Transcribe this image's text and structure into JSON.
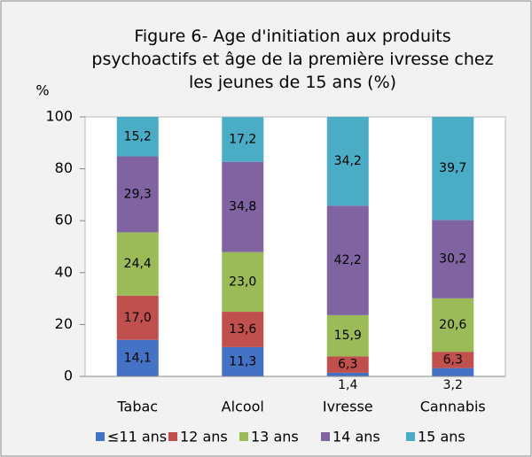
{
  "chart_data": {
    "type": "stacked_bar",
    "title": "Figure 6- Age d'initiation aux produits psychoactifs et âge de la première ivresse chez les jeunes de 15 ans (%)",
    "y_label": "%",
    "categories": [
      "Tabac",
      "Alcool",
      "Ivresse",
      "Cannabis"
    ],
    "series": [
      {
        "name": "≤11 ans",
        "color": "#4472c4",
        "values": [
          14.1,
          11.3,
          1.4,
          3.2
        ],
        "value_labels": [
          "14,1",
          "11,3",
          "1,4",
          "3,2"
        ]
      },
      {
        "name": "12 ans",
        "color": "#c0504d",
        "values": [
          17.0,
          13.6,
          6.3,
          6.3
        ],
        "value_labels": [
          "17,0",
          "13,6",
          "6,3",
          "6,3"
        ]
      },
      {
        "name": "13 ans",
        "color": "#9bbb59",
        "values": [
          24.4,
          23.0,
          15.9,
          20.6
        ],
        "value_labels": [
          "24,4",
          "23,0",
          "15,9",
          "20,6"
        ]
      },
      {
        "name": "14 ans",
        "color": "#8064a2",
        "values": [
          29.3,
          34.8,
          42.2,
          30.2
        ],
        "value_labels": [
          "29,3",
          "34,8",
          "42,2",
          "30,2"
        ]
      },
      {
        "name": "15 ans",
        "color": "#4bacc6",
        "values": [
          15.2,
          17.2,
          34.2,
          39.7
        ],
        "value_labels": [
          "15,2",
          "17,2",
          "34,2",
          "39,7"
        ]
      }
    ],
    "ylim": [
      0,
      100
    ],
    "yticks": [
      0,
      20,
      40,
      60,
      80,
      100
    ],
    "legend": "bottom"
  }
}
